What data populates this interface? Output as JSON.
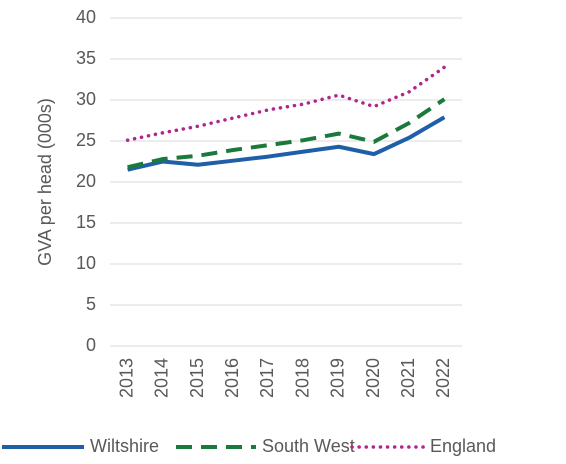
{
  "chart_data": {
    "type": "line",
    "ylabel": "GVA per head (000s)",
    "categories": [
      "2013",
      "2014",
      "2015",
      "2016",
      "2017",
      "2018",
      "2019",
      "2020",
      "2021",
      "2022"
    ],
    "series": [
      {
        "name": "Wiltshire",
        "color": "#1f5fa8",
        "style": "solid",
        "values": [
          21.5,
          22.5,
          22.1,
          22.6,
          23.1,
          23.7,
          24.3,
          23.4,
          25.4,
          27.9
        ]
      },
      {
        "name": "South West",
        "color": "#1a7a3c",
        "style": "dashed",
        "values": [
          21.8,
          22.8,
          23.2,
          23.9,
          24.5,
          25.1,
          25.9,
          24.9,
          27.2,
          30.1
        ]
      },
      {
        "name": "England",
        "color": "#b0268f",
        "style": "dotted",
        "values": [
          25.1,
          26.0,
          26.8,
          27.8,
          28.8,
          29.5,
          30.6,
          29.2,
          31.0,
          34.0
        ]
      }
    ],
    "ylim": [
      0,
      40
    ],
    "yticks": [
      0,
      5,
      10,
      15,
      20,
      25,
      30,
      35,
      40
    ],
    "grid": true,
    "legend": "bottom"
  }
}
